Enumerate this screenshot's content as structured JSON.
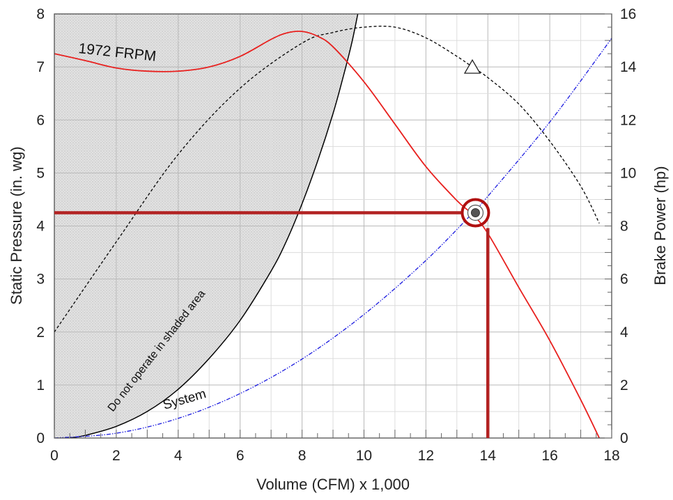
{
  "chart_data": {
    "type": "line",
    "title": "",
    "xlabel": "Volume (CFM) x 1,000",
    "ylabel_left": "Static Pressure (in. wg)",
    "ylabel_right": "Brake Power (hp)",
    "xlim": [
      0,
      18
    ],
    "ylim_left": [
      0,
      8
    ],
    "ylim_right": [
      0,
      16
    ],
    "x_ticks": [
      "0",
      "2",
      "4",
      "6",
      "8",
      "10",
      "12",
      "14",
      "16",
      "18"
    ],
    "y_left_ticks": [
      "0",
      "1",
      "2",
      "3",
      "4",
      "5",
      "6",
      "7",
      "8"
    ],
    "y_right_ticks": [
      "0",
      "2",
      "4",
      "6",
      "8",
      "10",
      "12",
      "14",
      "16"
    ],
    "grid": true,
    "colors": {
      "fan_curve": "#e8201e",
      "brake_power": "#000000",
      "system": "#1a1adf",
      "boundary": "#000000",
      "operating_lines": "#b22222",
      "marker_ring": "#b01010",
      "shade": "#d9d9d9"
    },
    "series": [
      {
        "key": "fan_curve",
        "name": "1972 FRPM",
        "axis": "left",
        "style": "solid",
        "x": [
          0,
          1,
          2,
          3,
          4,
          5,
          6,
          7,
          7.5,
          8,
          8.5,
          9,
          10,
          11,
          12,
          13,
          13.5,
          14,
          15,
          16,
          17,
          17.6
        ],
        "y": [
          7.25,
          7.12,
          6.98,
          6.92,
          6.92,
          7.0,
          7.2,
          7.52,
          7.64,
          7.67,
          7.58,
          7.38,
          6.72,
          5.92,
          5.12,
          4.48,
          4.22,
          3.86,
          2.84,
          1.84,
          0.72,
          0.0
        ]
      },
      {
        "key": "brake_power",
        "name": "",
        "axis": "right",
        "style": "dashed",
        "x": [
          0,
          2,
          4,
          6,
          8,
          9,
          10,
          11,
          12,
          13,
          13.5,
          14,
          15,
          16,
          17,
          17.6
        ],
        "y": [
          4.0,
          7.4,
          10.7,
          13.2,
          14.9,
          15.3,
          15.5,
          15.5,
          15.1,
          14.4,
          14.0,
          13.6,
          12.6,
          11.2,
          9.5,
          8.1
        ]
      },
      {
        "key": "system",
        "name": "System",
        "axis": "left",
        "style": "dashdot",
        "x": [
          0,
          2,
          4,
          6,
          8,
          10,
          12,
          13.6,
          14,
          16,
          18
        ],
        "y": [
          0.0,
          0.09,
          0.37,
          0.84,
          1.49,
          2.33,
          3.35,
          4.3,
          4.56,
          5.96,
          7.54
        ]
      },
      {
        "key": "boundary",
        "name": "Do not operate in shaded area",
        "axis": "left",
        "style": "solid",
        "x": [
          0.5,
          1,
          2,
          3,
          4,
          5,
          6,
          7,
          7.5,
          8,
          8.5,
          9,
          9.3,
          9.6,
          9.8
        ],
        "y": [
          0.0,
          0.05,
          0.22,
          0.5,
          0.92,
          1.5,
          2.22,
          3.15,
          3.72,
          4.42,
          5.22,
          6.12,
          6.75,
          7.44,
          8.0
        ]
      }
    ],
    "labels": {
      "fan_curve": "1972 FRPM",
      "system": "System",
      "boundary": "Do not operate in shaded area"
    },
    "operating_point": {
      "volume": 13.6,
      "static_pressure": 4.25,
      "guide_horizontal_pressure": 4.25,
      "guide_vertical_volume": 14.0
    },
    "triangle_marker": {
      "volume": 13.5,
      "brake_power": 14.0
    }
  }
}
